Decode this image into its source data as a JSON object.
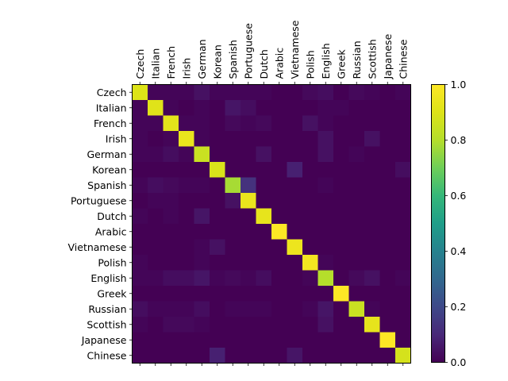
{
  "chart_data": {
    "type": "heatmap",
    "title": "",
    "xlabel": "",
    "ylabel": "",
    "colormap": "viridis",
    "x_tick_position": "top",
    "x_labels": [
      "Czech",
      "Italian",
      "French",
      "Irish",
      "German",
      "Korean",
      "Spanish",
      "Portuguese",
      "Dutch",
      "Arabic",
      "Vietnamese",
      "Polish",
      "English",
      "Greek",
      "Russian",
      "Scottish",
      "Japanese",
      "Chinese"
    ],
    "y_labels": [
      "Czech",
      "Italian",
      "French",
      "Irish",
      "German",
      "Korean",
      "Spanish",
      "Portuguese",
      "Dutch",
      "Arabic",
      "Vietnamese",
      "Polish",
      "English",
      "Greek",
      "Russian",
      "Scottish",
      "Japanese",
      "Chinese"
    ],
    "matrix": [
      [
        0.9,
        0.01,
        0.01,
        0.01,
        0.04,
        0.01,
        0.01,
        0.01,
        0.01,
        0.0,
        0.0,
        0.02,
        0.03,
        0.0,
        0.02,
        0.01,
        0.0,
        0.01
      ],
      [
        0.01,
        0.91,
        0.01,
        0.0,
        0.01,
        0.0,
        0.05,
        0.03,
        0.0,
        0.0,
        0.0,
        0.0,
        0.01,
        0.01,
        0.0,
        0.0,
        0.0,
        0.0
      ],
      [
        0.01,
        0.01,
        0.92,
        0.01,
        0.01,
        0.0,
        0.02,
        0.01,
        0.02,
        0.0,
        0.0,
        0.04,
        0.01,
        0.0,
        0.0,
        0.0,
        0.0,
        0.0
      ],
      [
        0.01,
        0.0,
        0.01,
        0.94,
        0.01,
        0.0,
        0.0,
        0.0,
        0.0,
        0.0,
        0.0,
        0.0,
        0.04,
        0.0,
        0.0,
        0.04,
        0.0,
        0.0
      ],
      [
        0.01,
        0.01,
        0.03,
        0.01,
        0.85,
        0.0,
        0.0,
        0.0,
        0.04,
        0.0,
        0.0,
        0.0,
        0.04,
        0.0,
        0.01,
        0.0,
        0.0,
        0.0
      ],
      [
        0.0,
        0.0,
        0.0,
        0.0,
        0.0,
        0.89,
        0.0,
        0.0,
        0.0,
        0.0,
        0.08,
        0.0,
        0.0,
        0.0,
        0.0,
        0.0,
        0.0,
        0.03
      ],
      [
        0.01,
        0.03,
        0.02,
        0.01,
        0.01,
        0.0,
        0.78,
        0.13,
        0.0,
        0.0,
        0.0,
        0.0,
        0.01,
        0.0,
        0.0,
        0.0,
        0.0,
        0.0
      ],
      [
        0.0,
        0.01,
        0.01,
        0.0,
        0.0,
        0.0,
        0.04,
        0.94,
        0.0,
        0.0,
        0.0,
        0.0,
        0.0,
        0.0,
        0.0,
        0.0,
        0.0,
        0.0
      ],
      [
        0.01,
        0.0,
        0.01,
        0.0,
        0.05,
        0.0,
        0.0,
        0.0,
        0.93,
        0.0,
        0.0,
        0.0,
        0.0,
        0.0,
        0.0,
        0.0,
        0.0,
        0.0
      ],
      [
        0.0,
        0.0,
        0.0,
        0.0,
        0.0,
        0.0,
        0.0,
        0.0,
        0.0,
        1.0,
        0.0,
        0.0,
        0.0,
        0.0,
        0.0,
        0.0,
        0.0,
        0.0
      ],
      [
        0.0,
        0.0,
        0.0,
        0.0,
        0.01,
        0.04,
        0.0,
        0.0,
        0.0,
        0.0,
        0.95,
        0.0,
        0.0,
        0.0,
        0.0,
        0.0,
        0.0,
        0.0
      ],
      [
        0.01,
        0.0,
        0.0,
        0.0,
        0.01,
        0.0,
        0.0,
        0.0,
        0.0,
        0.0,
        0.0,
        0.97,
        0.01,
        0.0,
        0.0,
        0.0,
        0.0,
        0.0
      ],
      [
        0.01,
        0.01,
        0.03,
        0.03,
        0.05,
        0.01,
        0.02,
        0.01,
        0.03,
        0.0,
        0.0,
        0.01,
        0.8,
        0.0,
        0.02,
        0.04,
        0.0,
        0.01
      ],
      [
        0.0,
        0.0,
        0.0,
        0.0,
        0.0,
        0.0,
        0.0,
        0.0,
        0.0,
        0.0,
        0.0,
        0.0,
        0.0,
        1.0,
        0.0,
        0.0,
        0.0,
        0.0
      ],
      [
        0.03,
        0.01,
        0.01,
        0.01,
        0.03,
        0.0,
        0.01,
        0.01,
        0.01,
        0.0,
        0.0,
        0.01,
        0.05,
        0.0,
        0.85,
        0.01,
        0.0,
        0.0
      ],
      [
        0.01,
        0.0,
        0.02,
        0.02,
        0.01,
        0.0,
        0.0,
        0.0,
        0.0,
        0.0,
        0.0,
        0.0,
        0.04,
        0.0,
        0.0,
        0.93,
        0.0,
        0.0
      ],
      [
        0.0,
        0.0,
        0.0,
        0.0,
        0.0,
        0.0,
        0.0,
        0.0,
        0.0,
        0.0,
        0.0,
        0.0,
        0.0,
        0.0,
        0.0,
        0.0,
        1.0,
        0.0
      ],
      [
        0.0,
        0.0,
        0.0,
        0.0,
        0.0,
        0.08,
        0.0,
        0.0,
        0.0,
        0.0,
        0.05,
        0.0,
        0.0,
        0.0,
        0.0,
        0.0,
        0.0,
        0.88
      ]
    ],
    "colorbar": {
      "range": [
        0.0,
        1.0
      ],
      "ticks": [
        "0.0",
        "0.2",
        "0.4",
        "0.6",
        "0.8",
        "1.0"
      ]
    }
  }
}
